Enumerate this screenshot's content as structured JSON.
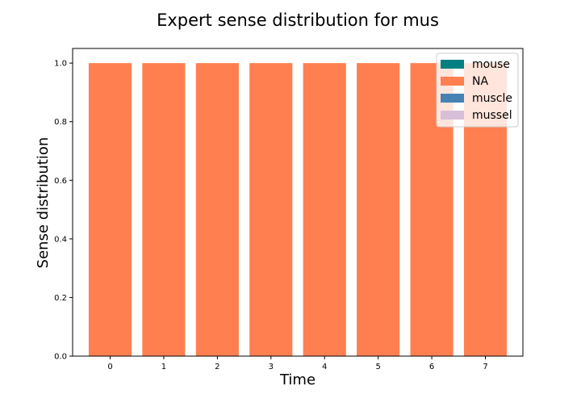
{
  "chart_data": {
    "type": "bar",
    "stacked": true,
    "title": "Expert sense distribution for mus",
    "xlabel": "Time",
    "ylabel": "Sense distribution",
    "categories": [
      "0",
      "1",
      "2",
      "3",
      "4",
      "5",
      "6",
      "7"
    ],
    "xlim": [
      -0.7,
      7.7
    ],
    "ylim": [
      0,
      1.05
    ],
    "yticks": [
      "0.0",
      "0.2",
      "0.4",
      "0.6",
      "0.8",
      "1.0"
    ],
    "grid": false,
    "legend_position": "top-right",
    "series": [
      {
        "name": "mouse",
        "color": "#008080",
        "values": [
          0,
          0,
          0,
          0,
          0,
          0,
          0,
          0
        ]
      },
      {
        "name": "NA",
        "color": "#ff7f50",
        "values": [
          1,
          1,
          1,
          1,
          1,
          1,
          1,
          1
        ]
      },
      {
        "name": "muscle",
        "color": "#4682b4",
        "values": [
          0,
          0,
          0,
          0,
          0,
          0,
          0,
          0
        ]
      },
      {
        "name": "mussel",
        "color": "#d8bfd8",
        "values": [
          0,
          0,
          0,
          0,
          0,
          0,
          0,
          0
        ]
      }
    ]
  }
}
